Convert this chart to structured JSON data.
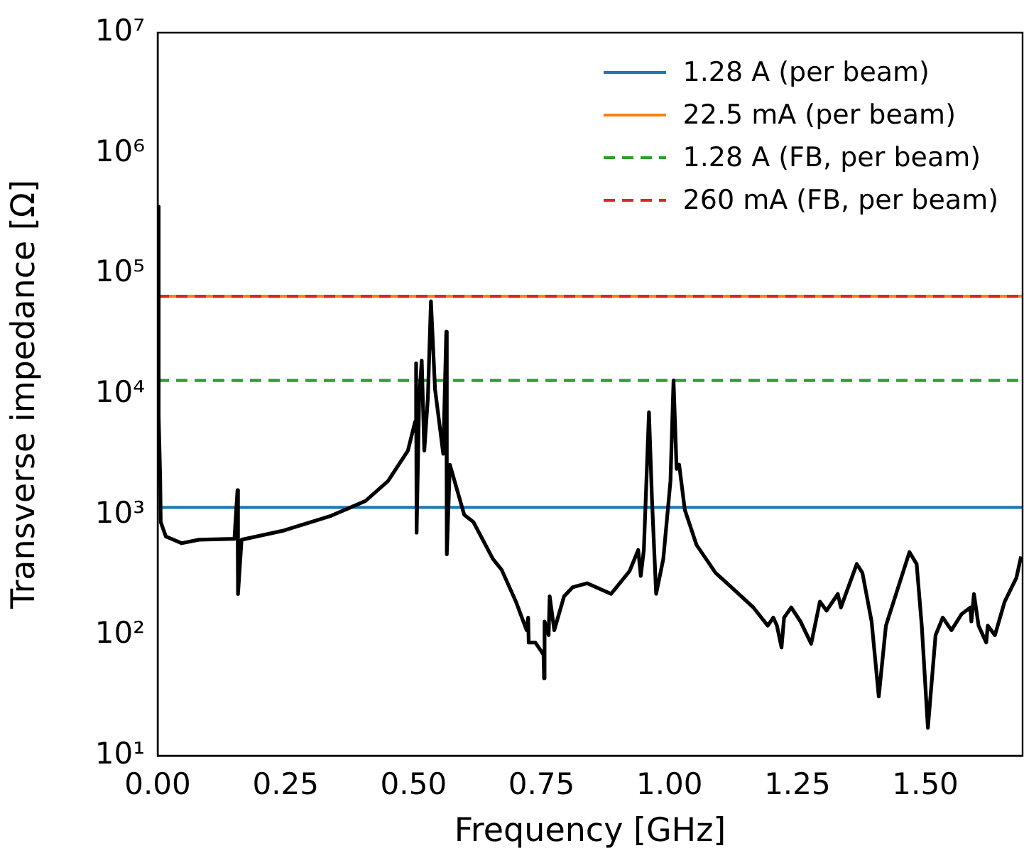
{
  "chart_data": {
    "type": "line",
    "xlabel": "Frequency [GHz]",
    "ylabel": "Transverse impedance [Ω]",
    "log": "y",
    "grid": false,
    "legend": "top right",
    "marker": "none",
    "xlim": [
      0,
      1.69
    ],
    "xticks": [
      {
        "value": 0,
        "label": "0.00"
      },
      {
        "value": 0.25,
        "label": "0.25"
      },
      {
        "value": 0.5,
        "label": "0.50"
      },
      {
        "value": 0.75,
        "label": "0.75"
      },
      {
        "value": 1,
        "label": "1.00"
      },
      {
        "value": 1.25,
        "label": "1.25"
      },
      {
        "value": 1.5,
        "label": "1.50"
      }
    ],
    "ylim": [
      10,
      10000000
    ],
    "yticks": [
      {
        "value": 10,
        "label": "10¹"
      },
      {
        "value": 100,
        "label": "10²"
      },
      {
        "value": 1000,
        "label": "10³"
      },
      {
        "value": 10000,
        "label": "10⁴"
      },
      {
        "value": 100000,
        "label": "10⁵"
      },
      {
        "value": 1000000,
        "label": "10⁶"
      },
      {
        "value": 10000000,
        "label": "10⁷"
      }
    ],
    "series": [
      {
        "name": "1.28 A (per beam)",
        "color": "#1f77b4",
        "line_style": "solid",
        "x": [
          0,
          1.69
        ],
        "values": [
          1150,
          1150
        ]
      },
      {
        "name": "22.5 mA (per beam)",
        "color": "#ff7f0e",
        "line_style": "solid",
        "x": [
          0,
          1.69
        ],
        "values": [
          65000,
          65000
        ]
      },
      {
        "name": "1.28 A (FB, per beam)",
        "color": "#2ca02c",
        "line_style": "dashed",
        "x": [
          0,
          1.69
        ],
        "values": [
          13000,
          13000
        ]
      },
      {
        "name": "260 mA (FB, per beam)",
        "color": "#d62728",
        "line_style": "dashed",
        "x": [
          0,
          1.69
        ],
        "values": [
          65000,
          65000
        ]
      },
      {
        "color": "#000000",
        "line_style": "solid",
        "x": [
          0,
          0.002,
          0.005,
          0.006,
          0.016,
          0.047,
          0.081,
          0.15,
          0.156,
          0.157,
          0.164,
          0.247,
          0.339,
          0.406,
          0.45,
          0.489,
          0.503,
          0.505,
          0.506,
          0.511,
          0.516,
          0.521,
          0.528,
          0.534,
          0.542,
          0.558,
          0.564,
          0.565,
          0.571,
          0.599,
          0.617,
          0.655,
          0.672,
          0.7,
          0.721,
          0.724,
          0.725,
          0.738,
          0.754,
          0.755,
          0.756,
          0.764,
          0.766,
          0.775,
          0.794,
          0.811,
          0.839,
          0.886,
          0.922,
          0.939,
          0.944,
          0.95,
          0.96,
          0.966,
          0.974,
          0.988,
          1.002,
          1.008,
          1.014,
          1.019,
          1.03,
          1.053,
          1.09,
          1.164,
          1.192,
          1.203,
          1.21,
          1.219,
          1.224,
          1.238,
          1.256,
          1.277,
          1.294,
          1.307,
          1.329,
          1.335,
          1.366,
          1.377,
          1.395,
          1.409,
          1.423,
          1.469,
          1.483,
          1.493,
          1.505,
          1.52,
          1.534,
          1.551,
          1.571,
          1.588,
          1.59,
          1.595,
          1.604,
          1.619,
          1.622,
          1.636,
          1.655,
          1.678,
          1.687
        ],
        "values": [
          360000,
          6500,
          2000,
          870,
          660,
          580,
          620,
          630,
          1600,
          220,
          620,
          740,
          980,
          1300,
          1900,
          3400,
          5900,
          18000,
          710,
          9300,
          19000,
          3400,
          9300,
          59000,
          11000,
          3200,
          33000,
          470,
          2600,
          1000,
          870,
          430,
          350,
          190,
          110,
          140,
          87,
          87,
          69,
          44,
          130,
          100,
          210,
          110,
          210,
          250,
          270,
          220,
          340,
          510,
          310,
          510,
          7100,
          1300,
          220,
          430,
          1900,
          13000,
          2400,
          2600,
          1100,
          560,
          330,
          170,
          120,
          140,
          120,
          79,
          140,
          170,
          130,
          85,
          190,
          160,
          220,
          170,
          390,
          330,
          130,
          31,
          120,
          490,
          390,
          120,
          17,
          100,
          140,
          110,
          150,
          170,
          130,
          220,
          120,
          87,
          120,
          100,
          190,
          300,
          450
        ]
      }
    ]
  }
}
